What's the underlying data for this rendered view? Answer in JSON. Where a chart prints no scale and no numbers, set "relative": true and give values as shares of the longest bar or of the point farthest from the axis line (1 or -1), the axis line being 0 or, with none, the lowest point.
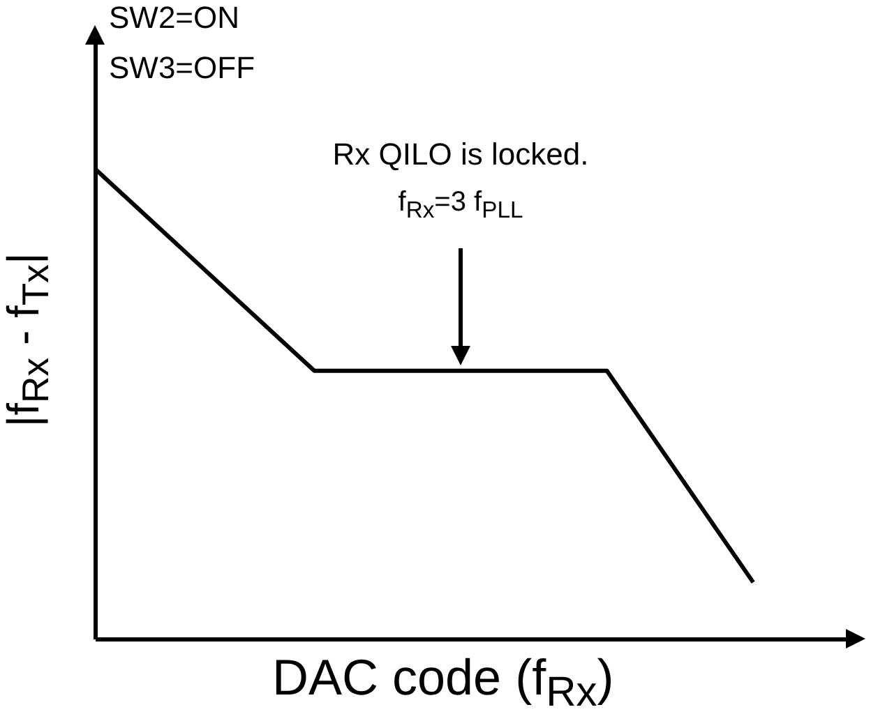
{
  "chart_data": {
    "type": "line",
    "relative": true,
    "categories": [
      null,
      null,
      null,
      null,
      null,
      null,
      null,
      null,
      null,
      null
    ],
    "values": [
      1,
      null,
      null,
      0.57,
      null,
      null,
      null,
      0.57,
      null,
      0.12
    ],
    "color": "#000000",
    "xlabel": "DAC code (f$_{Rx}$)",
    "ylabel": "|f$_{Rx}$ - f$_{Tx}$|",
    "tick_labels": false,
    "grid": false,
    "marker": "none",
    "line_style": "solid",
    "annotations": [
      "SW2=ON",
      "SW3=OFF",
      "Rx QILO is locked.\nf$_{Rx}$=3 f$_{PLL}$"
    ]
  }
}
